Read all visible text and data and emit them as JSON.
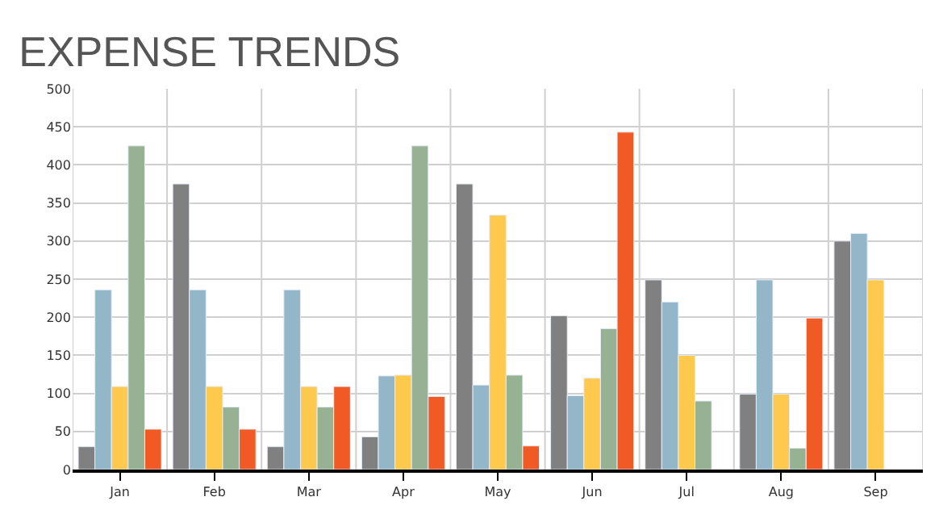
{
  "chart_data": {
    "type": "bar",
    "title": "EXPENSE TRENDS",
    "categories": [
      "Jan",
      "Feb",
      "Mar",
      "Apr",
      "May",
      "Jun",
      "Jul",
      "Aug",
      "Sep"
    ],
    "series": [
      {
        "color": "#808080",
        "values": [
          30,
          375,
          30,
          43,
          375,
          202,
          249,
          99,
          300
        ]
      },
      {
        "color": "#93b7c9",
        "values": [
          236,
          236,
          236,
          123,
          111,
          97,
          220,
          249,
          310
        ]
      },
      {
        "color": "#ffc94d",
        "values": [
          109,
          109,
          109,
          124,
          334,
          120,
          150,
          99,
          249
        ]
      },
      {
        "color": "#97b293",
        "values": [
          425,
          82,
          82,
          425,
          124,
          185,
          90,
          28,
          null
        ]
      },
      {
        "color": "#f15a24",
        "values": [
          53,
          53,
          109,
          96,
          31,
          443,
          null,
          199,
          null
        ]
      }
    ],
    "ylim": [
      0,
      500
    ],
    "yticks": [
      0,
      50,
      100,
      150,
      200,
      250,
      300,
      350,
      400,
      450,
      500
    ],
    "grid": true
  }
}
